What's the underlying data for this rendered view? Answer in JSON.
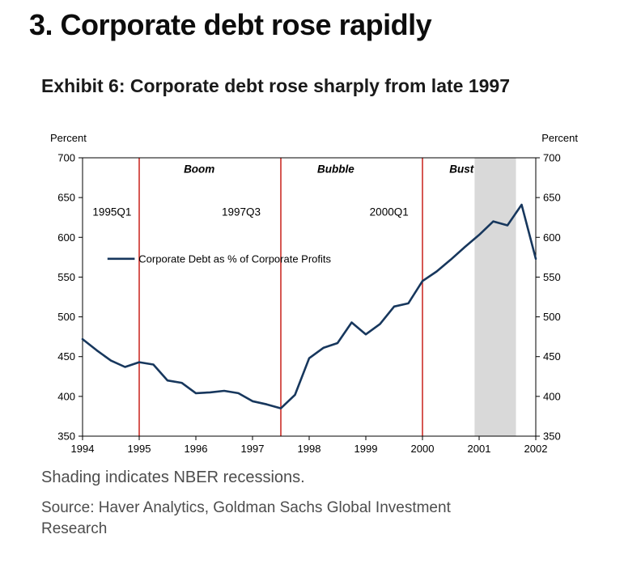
{
  "page": {
    "title": "3. Corporate debt rose rapidly"
  },
  "exhibit": {
    "title": "Exhibit 6: Corporate debt rose sharply from late 1997"
  },
  "footer": {
    "caption": "Shading indicates NBER recessions.",
    "source": "Source: Haver Analytics, Goldman Sachs Global Investment Research"
  },
  "chart_data": {
    "type": "line",
    "title": "Corporate Debt as % of Corporate Profits",
    "ylabel_left": "Percent",
    "ylabel_right": "Percent",
    "ylim": [
      350,
      700
    ],
    "ytick_step": 50,
    "xlim": [
      1994,
      2002
    ],
    "xticks": [
      1994,
      1995,
      1996,
      1997,
      1998,
      1999,
      2000,
      2001,
      2002
    ],
    "grid": false,
    "series": [
      {
        "name": "Corporate Debt as % of Corporate Profits",
        "color": "#17375d",
        "x_start": 1994.0,
        "x_step": 0.25,
        "values": [
          472,
          458,
          445,
          437,
          443,
          440,
          420,
          417,
          404,
          405,
          407,
          404,
          394,
          390,
          385,
          402,
          448,
          461,
          467,
          493,
          478,
          491,
          513,
          517,
          545,
          557,
          572,
          588,
          603,
          620,
          615,
          641,
          573
        ]
      }
    ],
    "vlines": [
      {
        "x": 1995.0,
        "label": "1995Q1",
        "label_x": 1994.52,
        "label_y": 627,
        "color": "#cc2e28"
      },
      {
        "x": 1997.5,
        "label": "1997Q3",
        "label_x": 1996.8,
        "label_y": 627,
        "color": "#cc2e28"
      },
      {
        "x": 2000.0,
        "label": "2000Q1",
        "label_x": 1999.41,
        "label_y": 627,
        "color": "#cc2e28"
      }
    ],
    "phase_labels": [
      {
        "x": 1996.06,
        "y": 681,
        "text": "Boom"
      },
      {
        "x": 1998.47,
        "y": 681,
        "text": "Bubble"
      },
      {
        "x": 2000.69,
        "y": 681,
        "text": "Bust"
      }
    ],
    "recession_bands": [
      {
        "x0": 2000.92,
        "x1": 2001.65,
        "color": "#d9d9d9"
      }
    ],
    "legend": {
      "label": "Corporate Debt as % of Corporate Profits",
      "line_x0": 1994.44,
      "line_x1": 1994.92,
      "text_x": 1994.99,
      "y": 573
    }
  }
}
